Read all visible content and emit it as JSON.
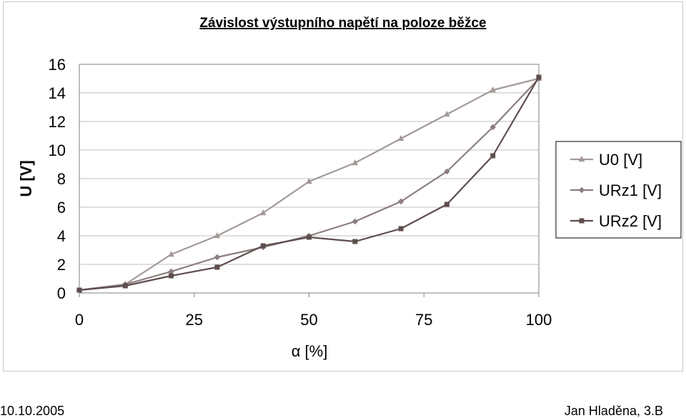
{
  "chart_data": {
    "type": "line",
    "title": "Závislost výstupního napětí na poloze běžce",
    "xlabel": "α [%]",
    "ylabel": "U [V]",
    "xlim": [
      0,
      100
    ],
    "ylim": [
      0,
      16
    ],
    "xticks": [
      "0",
      "25",
      "50",
      "75",
      "100"
    ],
    "yticks": [
      "0",
      "2",
      "4",
      "6",
      "8",
      "10",
      "12",
      "14",
      "16"
    ],
    "grid": "horizontal",
    "legend_position": "right",
    "series": [
      {
        "name": "U0 [V]",
        "marker": "triangle",
        "color": "#a39a98",
        "points": [
          [
            0,
            0.2
          ],
          [
            10,
            0.6
          ],
          [
            20,
            2.7
          ],
          [
            30,
            4.0
          ],
          [
            40,
            5.6
          ],
          [
            50,
            7.8
          ],
          [
            60,
            9.1
          ],
          [
            70,
            10.8
          ],
          [
            80,
            12.5
          ],
          [
            90,
            14.2
          ],
          [
            100,
            15.0
          ]
        ]
      },
      {
        "name": "URz1 [V]",
        "marker": "diamond",
        "color": "#8c7e7e",
        "points": [
          [
            0,
            0.2
          ],
          [
            10,
            0.6
          ],
          [
            20,
            1.5
          ],
          [
            30,
            2.5
          ],
          [
            40,
            3.2
          ],
          [
            50,
            4.0
          ],
          [
            60,
            5.0
          ],
          [
            70,
            6.4
          ],
          [
            80,
            8.5
          ],
          [
            90,
            11.6
          ],
          [
            100,
            15.0
          ]
        ]
      },
      {
        "name": "URz2 [V]",
        "marker": "square",
        "color": "#5e4e4e",
        "points": [
          [
            0,
            0.2
          ],
          [
            10,
            0.5
          ],
          [
            20,
            1.2
          ],
          [
            30,
            1.8
          ],
          [
            40,
            3.3
          ],
          [
            50,
            3.9
          ],
          [
            60,
            3.6
          ],
          [
            70,
            4.5
          ],
          [
            80,
            6.2
          ],
          [
            90,
            9.6
          ],
          [
            100,
            15.1
          ]
        ]
      }
    ]
  },
  "footer": {
    "date": "10.10.2005",
    "author": "Jan Hladěna, 3.B"
  }
}
